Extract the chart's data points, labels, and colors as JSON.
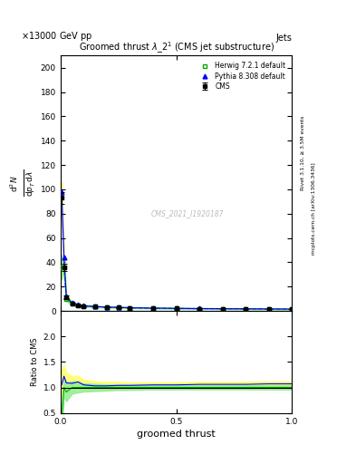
{
  "title": "Groomed thrust $\\lambda\\_2^1$ (CMS jet substructure)",
  "top_left_label": "13000 GeV pp",
  "top_right_label": "Jets",
  "watermark": "CMS_2021_I1920187",
  "right_label_top": "Rivet 3.1.10, ≥ 3.5M events",
  "right_label_bottom": "mcplots.cern.ch [arXiv:1306.3436]",
  "ylabel_main_lines": [
    "mathrm d$^2$N",
    "mathrm d p$_T$ mathrm d lambda"
  ],
  "ylabel_ratio": "Ratio to CMS",
  "xlabel": "groomed thrust",
  "ylim_main": [
    0,
    210
  ],
  "ylim_ratio": [
    0.5,
    2.5
  ],
  "xlim": [
    0.0,
    1.0
  ],
  "cms_x": [
    0.005,
    0.015,
    0.025,
    0.05,
    0.075,
    0.1,
    0.15,
    0.2,
    0.25,
    0.3,
    0.4,
    0.5,
    0.6,
    0.7,
    0.8,
    0.9,
    1.0
  ],
  "cms_y": [
    93,
    36,
    11,
    6,
    4.5,
    4.0,
    3.5,
    3.0,
    2.8,
    2.5,
    2.2,
    2.0,
    1.8,
    1.7,
    1.6,
    1.5,
    1.4
  ],
  "cms_yerr": [
    5,
    3,
    1.5,
    0.8,
    0.6,
    0.5,
    0.4,
    0.3,
    0.3,
    0.2,
    0.2,
    0.2,
    0.2,
    0.2,
    0.15,
    0.15,
    0.15
  ],
  "herwig_x": [
    0.005,
    0.015,
    0.025,
    0.05,
    0.075,
    0.1,
    0.15,
    0.2,
    0.25,
    0.3,
    0.4,
    0.5,
    0.6,
    0.7,
    0.8,
    0.9,
    1.0
  ],
  "herwig_y": [
    36,
    36,
    10,
    6,
    4.5,
    4.0,
    3.5,
    3.0,
    2.8,
    2.5,
    2.2,
    2.0,
    1.8,
    1.7,
    1.6,
    1.5,
    1.4
  ],
  "herwig_yerr": [
    10,
    4,
    2,
    1,
    0.7,
    0.6,
    0.5,
    0.4,
    0.3,
    0.3,
    0.2,
    0.2,
    0.2,
    0.2,
    0.15,
    0.15,
    0.15
  ],
  "pythia_x": [
    0.005,
    0.015,
    0.025,
    0.05,
    0.075,
    0.1,
    0.15,
    0.2,
    0.25,
    0.3,
    0.4,
    0.5,
    0.6,
    0.7,
    0.8,
    0.9,
    1.0
  ],
  "pythia_y": [
    98,
    44,
    12,
    6.5,
    5.0,
    4.2,
    3.6,
    3.1,
    2.9,
    2.6,
    2.3,
    2.1,
    1.9,
    1.8,
    1.7,
    1.6,
    1.5
  ],
  "pythia_yerr": [
    8,
    4,
    2,
    1,
    0.7,
    0.5,
    0.4,
    0.3,
    0.3,
    0.25,
    0.2,
    0.2,
    0.2,
    0.15,
    0.15,
    0.15,
    0.1
  ],
  "herwig_ratio": [
    0.39,
    1.0,
    0.91,
    1.0,
    1.0,
    1.0,
    1.0,
    1.0,
    1.0,
    1.0,
    1.0,
    1.0,
    1.0,
    1.0,
    1.0,
    1.0,
    1.0
  ],
  "herwig_ratio_err": [
    0.25,
    0.18,
    0.18,
    0.12,
    0.1,
    0.08,
    0.07,
    0.06,
    0.05,
    0.05,
    0.04,
    0.04,
    0.04,
    0.04,
    0.04,
    0.04,
    0.04
  ],
  "pythia_ratio": [
    1.05,
    1.22,
    1.09,
    1.08,
    1.11,
    1.05,
    1.03,
    1.03,
    1.04,
    1.04,
    1.05,
    1.05,
    1.06,
    1.06,
    1.06,
    1.07,
    1.07
  ],
  "pythia_ratio_err": [
    0.28,
    0.22,
    0.2,
    0.14,
    0.12,
    0.1,
    0.09,
    0.08,
    0.07,
    0.06,
    0.05,
    0.05,
    0.05,
    0.05,
    0.05,
    0.05,
    0.05
  ],
  "cms_color": "#000000",
  "herwig_color": "#00aa00",
  "pythia_color": "#0000ff",
  "herwig_fill_color": "#90ee90",
  "pythia_fill_color": "#ffff66",
  "bg_color": "#ffffff",
  "yticks_main": [
    0,
    20,
    40,
    60,
    80,
    100,
    120,
    140,
    160,
    180,
    200
  ],
  "yticks_ratio": [
    0.5,
    1.0,
    1.5,
    2.0
  ],
  "xticks": [
    0.0,
    0.5,
    1.0
  ]
}
